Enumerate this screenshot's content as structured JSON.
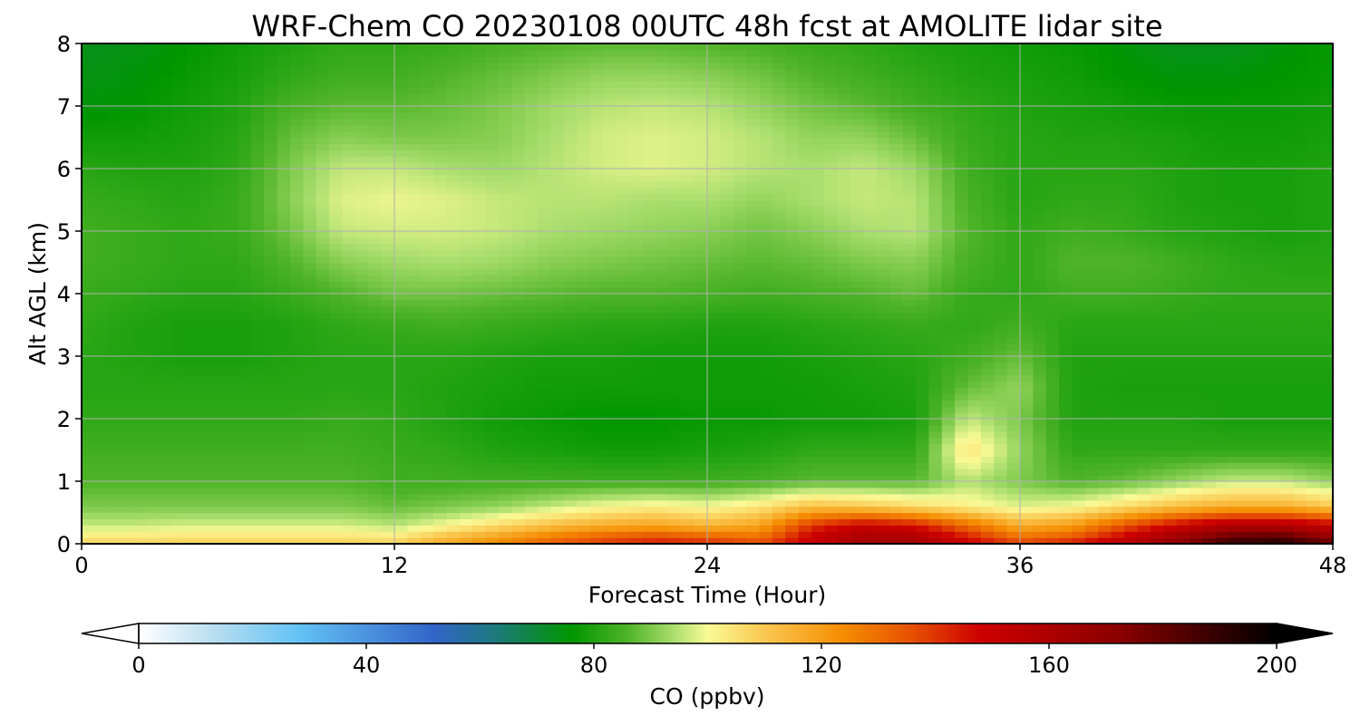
{
  "chart_data": {
    "type": "heatmap",
    "title": "WRF-Chem CO  20230108 00UTC 48h fcst at AMOLITE lidar site",
    "xlabel": "Forecast Time (Hour)",
    "ylabel": "Alt AGL (km)",
    "xlim": [
      0,
      48
    ],
    "ylim": [
      0,
      8
    ],
    "x_ticks": [
      "0",
      "12",
      "24",
      "36",
      "48"
    ],
    "y_ticks": [
      "0",
      "1",
      "2",
      "3",
      "4",
      "5",
      "6",
      "7",
      "8"
    ],
    "grid": true,
    "x_hours": [
      0,
      2,
      4,
      6,
      8,
      10,
      12,
      14,
      16,
      18,
      20,
      22,
      24,
      26,
      28,
      30,
      32,
      34,
      36,
      38,
      40,
      42,
      44,
      46,
      48
    ],
    "y_km": [
      0,
      0.1,
      0.3,
      0.6,
      1,
      1.5,
      2,
      2.5,
      3,
      3.5,
      4,
      4.5,
      5,
      5.5,
      6,
      6.5,
      7,
      7.5,
      8
    ],
    "co_ppbv": [
      [
        108,
        108,
        109,
        109,
        109,
        109,
        108,
        118,
        125,
        134,
        140,
        145,
        143,
        138,
        150,
        162,
        164,
        150,
        140,
        146,
        158,
        172,
        190,
        195,
        180
      ],
      [
        104,
        104,
        105,
        105,
        105,
        105,
        104,
        113,
        120,
        128,
        134,
        138,
        134,
        130,
        150,
        162,
        160,
        145,
        130,
        135,
        150,
        165,
        182,
        185,
        170
      ],
      [
        96,
        96,
        97,
        97,
        97,
        97,
        95,
        100,
        106,
        112,
        116,
        118,
        114,
        118,
        140,
        150,
        145,
        130,
        116,
        120,
        135,
        148,
        158,
        158,
        150
      ],
      [
        90,
        90,
        90,
        90,
        90,
        90,
        88,
        90,
        92,
        96,
        100,
        102,
        100,
        104,
        112,
        110,
        106,
        102,
        98,
        100,
        106,
        112,
        116,
        116,
        110
      ],
      [
        86,
        86,
        86,
        86,
        86,
        86,
        84,
        84,
        84,
        84,
        84,
        84,
        84,
        85,
        87,
        87,
        87,
        95,
        90,
        86,
        88,
        92,
        96,
        96,
        92
      ],
      [
        84,
        84,
        84,
        84,
        84,
        84,
        83,
        82,
        80,
        79,
        78,
        78,
        79,
        80,
        82,
        82,
        82,
        105,
        92,
        82,
        82,
        82,
        82,
        82,
        82
      ],
      [
        82,
        82,
        82,
        82,
        82,
        83,
        82,
        80,
        78,
        77,
        76,
        76,
        77,
        77,
        78,
        78,
        79,
        96,
        90,
        80,
        80,
        80,
        79,
        79,
        79
      ],
      [
        81,
        81,
        81,
        81,
        81,
        81,
        81,
        80,
        79,
        78,
        78,
        78,
        78,
        78,
        78,
        79,
        80,
        88,
        92,
        80,
        79,
        79,
        79,
        79,
        79
      ],
      [
        81,
        80,
        79,
        79,
        80,
        81,
        81,
        81,
        80,
        79,
        79,
        78,
        78,
        78,
        79,
        80,
        81,
        84,
        88,
        80,
        80,
        80,
        80,
        80,
        80
      ],
      [
        82,
        80,
        79,
        79,
        80,
        82,
        83,
        84,
        83,
        82,
        81,
        81,
        80,
        80,
        81,
        82,
        83,
        82,
        84,
        81,
        81,
        81,
        81,
        81,
        81
      ],
      [
        83,
        82,
        81,
        81,
        83,
        86,
        89,
        89,
        88,
        87,
        86,
        86,
        85,
        84,
        85,
        86,
        88,
        83,
        82,
        84,
        84,
        83,
        82,
        82,
        82
      ],
      [
        84,
        83,
        82,
        82,
        86,
        91,
        93,
        94,
        93,
        91,
        90,
        89,
        88,
        87,
        88,
        90,
        91,
        85,
        82,
        86,
        86,
        84,
        82,
        81,
        81
      ],
      [
        84,
        83,
        82,
        83,
        89,
        96,
        97,
        97,
        96,
        94,
        93,
        92,
        91,
        89,
        91,
        94,
        95,
        86,
        82,
        84,
        83,
        81,
        80,
        79,
        80
      ],
      [
        83,
        82,
        81,
        83,
        91,
        98,
        99,
        98,
        96,
        95,
        95,
        94,
        94,
        92,
        94,
        96,
        95,
        85,
        81,
        82,
        82,
        80,
        79,
        79,
        80
      ],
      [
        81,
        80,
        80,
        82,
        90,
        96,
        96,
        94,
        93,
        95,
        97,
        98,
        97,
        95,
        94,
        96,
        93,
        84,
        81,
        81,
        81,
        80,
        79,
        79,
        80
      ],
      [
        78,
        78,
        79,
        81,
        88,
        91,
        90,
        90,
        91,
        94,
        97,
        98,
        97,
        95,
        92,
        92,
        88,
        83,
        81,
        80,
        80,
        79,
        78,
        78,
        79
      ],
      [
        75,
        76,
        78,
        80,
        85,
        87,
        87,
        88,
        90,
        93,
        95,
        96,
        95,
        92,
        89,
        87,
        84,
        82,
        80,
        79,
        78,
        77,
        77,
        77,
        78
      ],
      [
        74,
        75,
        77,
        79,
        82,
        84,
        84,
        86,
        88,
        90,
        92,
        92,
        91,
        89,
        86,
        84,
        82,
        80,
        79,
        78,
        76,
        75,
        75,
        76,
        77
      ],
      [
        73,
        74,
        76,
        78,
        80,
        82,
        82,
        83,
        85,
        86,
        87,
        87,
        86,
        85,
        83,
        82,
        80,
        79,
        78,
        77,
        75,
        73,
        73,
        75,
        77
      ]
    ],
    "colorbar": {
      "label": "CO  (ppbv)",
      "min": 0,
      "max": 200,
      "ticks": [
        "0",
        "40",
        "80",
        "120",
        "160",
        "200"
      ],
      "extend": "both",
      "stops": [
        {
          "v": 0,
          "c": "#ffffff"
        },
        {
          "v": 14,
          "c": "#b4dcf0"
        },
        {
          "v": 28,
          "c": "#64c3f5"
        },
        {
          "v": 52,
          "c": "#3264c8"
        },
        {
          "v": 62,
          "c": "#1e7882"
        },
        {
          "v": 76,
          "c": "#009600"
        },
        {
          "v": 86,
          "c": "#50b428"
        },
        {
          "v": 94,
          "c": "#aade6e"
        },
        {
          "v": 100,
          "c": "#fafa96"
        },
        {
          "v": 110,
          "c": "#fac850"
        },
        {
          "v": 124,
          "c": "#f58c00"
        },
        {
          "v": 136,
          "c": "#e65000"
        },
        {
          "v": 148,
          "c": "#cd0000"
        },
        {
          "v": 172,
          "c": "#8c0000"
        },
        {
          "v": 200,
          "c": "#000000"
        }
      ]
    }
  }
}
